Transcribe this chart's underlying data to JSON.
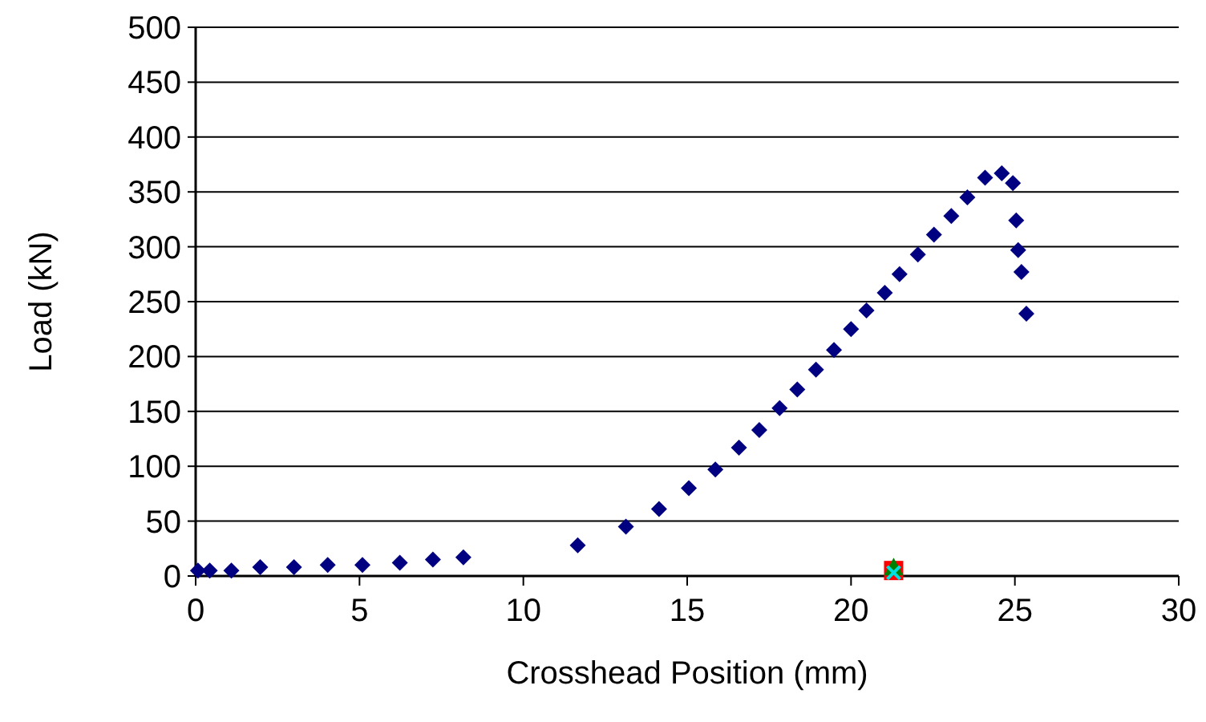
{
  "chart_data": {
    "type": "scatter",
    "xlabel": "Crosshead Position (mm)",
    "ylabel": "Load (kN)",
    "xlim": [
      0,
      30
    ],
    "xticks": [
      0,
      5,
      10,
      15,
      20,
      25,
      30
    ],
    "ylim": [
      0,
      500
    ],
    "yticks": [
      0,
      50,
      100,
      150,
      200,
      250,
      300,
      350,
      400,
      450,
      500
    ],
    "grid": "y",
    "series": [
      {
        "color": "#000080",
        "marker": "diamond",
        "x": [
          0.07,
          0.43,
          1.09,
          1.97,
          3.0,
          4.03,
          5.09,
          6.23,
          7.24,
          8.17,
          11.66,
          13.13,
          14.14,
          15.05,
          15.86,
          16.58,
          17.2,
          17.82,
          18.36,
          18.93,
          19.48,
          20.0,
          20.47,
          21.03,
          21.48,
          22.04,
          22.53,
          23.06,
          23.55,
          24.09,
          24.6,
          24.94,
          25.04,
          25.1,
          25.2,
          25.35
        ],
        "values": [
          5,
          5,
          5,
          8,
          8,
          10,
          10,
          12,
          15,
          17,
          28,
          45,
          61,
          80,
          97,
          117,
          133,
          153,
          170,
          188,
          206,
          225,
          242,
          258,
          275,
          293,
          311,
          328,
          345,
          363,
          367,
          358,
          324,
          297,
          277,
          239
        ]
      },
      {
        "color": "#ff0000",
        "marker": "square",
        "x": [
          21.3
        ],
        "values": [
          5
        ]
      },
      {
        "color": "#008000",
        "marker": "triangle",
        "x": [
          21.3
        ],
        "values": [
          5
        ]
      },
      {
        "color": "#00e0e0",
        "marker": "cross",
        "x": [
          21.3
        ],
        "values": [
          3
        ]
      }
    ]
  }
}
